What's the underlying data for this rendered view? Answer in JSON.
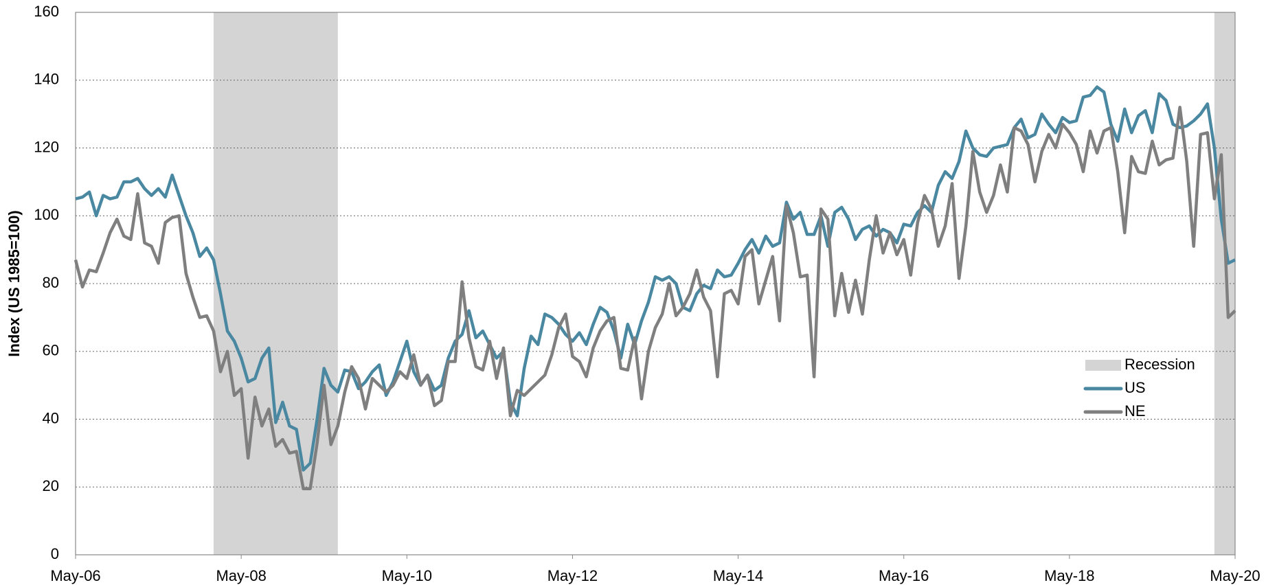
{
  "chart_data": {
    "type": "line",
    "y_label": "Index (US 1985=100)",
    "categories": [
      "May-06",
      null,
      null,
      null,
      null,
      null,
      null,
      null,
      null,
      null,
      null,
      null,
      null,
      null,
      null,
      null,
      null,
      null,
      null,
      null,
      null,
      null,
      null,
      null,
      "May-08",
      null,
      null,
      null,
      null,
      null,
      null,
      null,
      null,
      null,
      null,
      null,
      null,
      null,
      null,
      null,
      null,
      null,
      null,
      null,
      null,
      null,
      null,
      null,
      "May-10",
      null,
      null,
      null,
      null,
      null,
      null,
      null,
      null,
      null,
      null,
      null,
      null,
      null,
      null,
      null,
      null,
      null,
      null,
      null,
      null,
      null,
      null,
      null,
      "May-12",
      null,
      null,
      null,
      null,
      null,
      null,
      null,
      null,
      null,
      null,
      null,
      null,
      null,
      null,
      null,
      null,
      null,
      null,
      null,
      null,
      null,
      null,
      null,
      "May-14",
      null,
      null,
      null,
      null,
      null,
      null,
      null,
      null,
      null,
      null,
      null,
      null,
      null,
      null,
      null,
      null,
      null,
      null,
      null,
      null,
      null,
      null,
      null,
      "May-16",
      null,
      null,
      null,
      null,
      null,
      null,
      null,
      null,
      null,
      null,
      null,
      null,
      null,
      null,
      null,
      null,
      null,
      null,
      null,
      null,
      null,
      null,
      null,
      "May-18",
      null,
      null,
      null,
      null,
      null,
      null,
      null,
      null,
      null,
      null,
      null,
      null,
      null,
      null,
      null,
      null,
      null,
      null,
      null,
      null,
      null,
      null,
      null,
      "May-20"
    ],
    "recession": {
      "name": "Recession",
      "color": "#d4d4d4",
      "spans": [
        [
          20,
          38
        ],
        [
          165,
          168
        ]
      ]
    },
    "series": [
      {
        "name": "US",
        "color": "#4a88a2",
        "values": [
          105,
          105.5,
          107,
          100,
          106,
          105,
          105.5,
          110,
          110,
          111,
          108,
          106,
          108,
          105.5,
          112,
          106,
          100,
          95,
          88,
          90.5,
          87,
          77,
          66,
          63,
          58,
          51,
          52,
          58,
          61,
          39,
          45,
          38,
          37,
          25,
          27,
          40,
          55,
          50,
          48,
          54.5,
          54,
          49,
          51,
          54,
          56,
          47,
          51,
          57,
          63,
          54,
          50,
          53,
          48.5,
          50,
          58,
          63,
          65,
          72,
          64,
          66,
          62,
          58,
          60,
          45,
          41,
          55,
          64.5,
          62,
          71,
          70,
          68,
          65,
          63,
          65.5,
          62,
          68,
          73,
          71.5,
          66,
          58,
          68,
          62,
          69,
          74.5,
          82,
          81,
          82,
          80,
          73,
          72,
          77,
          79.5,
          78.5,
          84,
          82,
          82.5,
          86,
          90,
          93,
          89,
          94,
          91,
          92,
          104,
          99,
          101,
          94.5,
          94.5,
          100,
          91,
          101,
          102.5,
          99,
          93,
          96,
          97,
          94,
          96,
          95,
          92,
          97.5,
          97,
          101,
          103,
          101,
          109,
          113,
          111,
          116,
          125,
          120,
          118,
          117.5,
          120,
          120.5,
          121,
          126,
          128.5,
          123,
          124,
          130,
          127,
          124.5,
          129,
          127.5,
          128,
          135,
          135.5,
          138,
          136.5,
          127,
          122,
          131.5,
          124.5,
          129.5,
          131,
          124.5,
          136,
          134,
          127,
          126,
          126.5,
          128,
          130,
          133,
          120,
          99,
          86,
          87
        ]
      },
      {
        "name": "NE",
        "color": "#7f7f7f",
        "values": [
          87,
          79,
          84,
          83.5,
          89,
          95,
          99,
          94,
          93,
          106.5,
          92,
          91,
          86,
          98,
          99.5,
          100,
          83,
          76,
          70,
          70.5,
          66,
          54,
          60,
          47,
          49,
          28.5,
          46.5,
          38,
          43,
          32,
          34,
          30,
          30.5,
          19.5,
          19.5,
          33,
          50,
          32.5,
          38,
          48,
          55.5,
          52,
          43,
          52,
          50,
          48,
          50,
          54,
          52,
          59,
          50,
          53,
          44,
          45.5,
          57,
          57,
          80.5,
          64,
          55.5,
          54.5,
          63,
          52,
          61,
          41,
          48.5,
          47,
          49,
          51,
          53,
          59,
          67,
          71,
          58.5,
          57,
          52.5,
          61,
          66,
          69,
          70,
          55,
          54.5,
          64,
          46,
          60,
          67,
          71,
          80,
          70.5,
          73,
          77,
          84,
          76,
          72,
          52.5,
          77,
          78,
          74,
          88,
          90,
          74,
          81,
          88,
          69,
          103,
          95,
          82,
          82.5,
          52.5,
          102,
          99,
          70.5,
          83,
          71.5,
          81,
          71,
          87,
          100,
          89,
          95,
          88.5,
          93,
          82.5,
          98,
          106,
          102,
          91,
          97,
          109.5,
          81.5,
          97,
          119,
          107,
          101,
          106,
          115,
          107,
          126,
          125,
          121,
          110,
          119,
          124,
          120,
          127,
          124.5,
          121,
          113,
          125,
          118.5,
          125,
          126,
          113,
          95,
          117.5,
          113,
          112.5,
          122,
          115,
          116.5,
          117,
          132,
          116,
          91,
          124,
          124.5,
          105,
          118,
          70,
          72
        ]
      }
    ],
    "ylim": [
      0,
      160
    ],
    "yticks": [
      0,
      20,
      40,
      60,
      80,
      100,
      120,
      140,
      160
    ],
    "grid": true
  }
}
